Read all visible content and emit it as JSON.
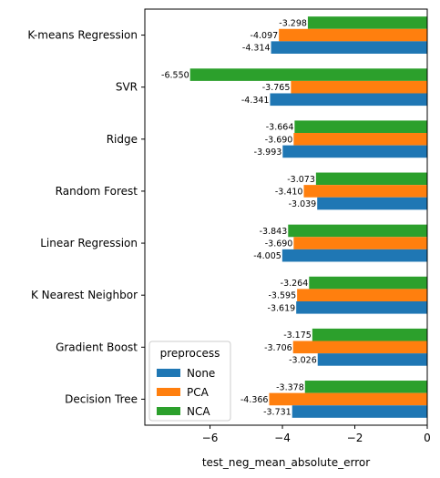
{
  "chart_data": {
    "type": "bar",
    "orientation": "horizontal",
    "categories": [
      "K-means Regression",
      "SVR",
      "Ridge",
      "Random Forest",
      "Linear Regression",
      "K Nearest Neighbor",
      "Gradient Boost",
      "Decision Tree"
    ],
    "series": [
      {
        "name": "None",
        "color": "#1f77b4",
        "values": [
          -4.314,
          -4.341,
          -3.993,
          -3.039,
          -4.005,
          -3.619,
          -3.026,
          -3.731
        ],
        "labels": [
          "-4.314",
          "-4.341",
          "-3.993",
          "-3.039",
          "-4.005",
          "-3.619",
          "-3.026",
          "-3.731"
        ]
      },
      {
        "name": "PCA",
        "color": "#ff7f0e",
        "values": [
          -4.097,
          -3.765,
          -3.69,
          -3.41,
          -3.69,
          -3.595,
          -3.706,
          -4.366
        ],
        "labels": [
          "-4.097",
          "-3.765",
          "-3.690",
          "-3.410",
          "-3.690",
          "-3.595",
          "-3.706",
          "-4.366"
        ]
      },
      {
        "name": "NCA",
        "color": "#2ca02c",
        "values": [
          -3.298,
          -6.55,
          -3.664,
          -3.073,
          -3.843,
          -3.264,
          -3.175,
          -3.378
        ],
        "labels": [
          "-3.298",
          "-6.550",
          "-3.664",
          "-3.073",
          "-3.843",
          "-3.264",
          "-3.175",
          "-3.378"
        ]
      }
    ],
    "xlabel": "test_neg_mean_absolute_error",
    "ylabel": "",
    "xlim": [
      -7.8,
      0
    ],
    "xticks": [
      -6,
      -4,
      -2,
      0
    ],
    "xtick_labels": [
      "−6",
      "−4",
      "−2",
      "0"
    ],
    "legend": {
      "title": "preprocess",
      "placement": "lower-left"
    },
    "grid": false
  }
}
